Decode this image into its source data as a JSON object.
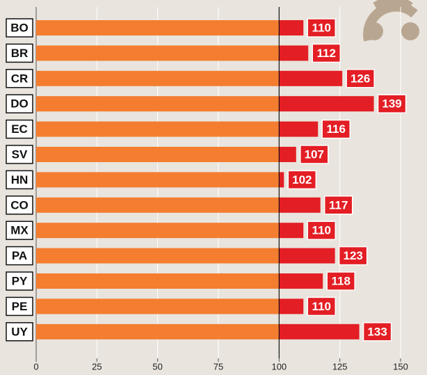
{
  "chart_data": {
    "type": "bar",
    "orientation": "horizontal",
    "categories": [
      "BO",
      "BR",
      "CR",
      "DO",
      "EC",
      "SV",
      "HN",
      "CO",
      "MX",
      "PA",
      "PY",
      "PE",
      "UY"
    ],
    "values": [
      110,
      112,
      126,
      139,
      116,
      107,
      102,
      117,
      110,
      123,
      118,
      110,
      133
    ],
    "color": "#f47d30",
    "color_above_reference": "#e31e24",
    "reference_line": 100,
    "xlim": [
      0,
      150
    ],
    "xticks": [
      0,
      25,
      50,
      75,
      100,
      125,
      150
    ],
    "grid": true
  }
}
